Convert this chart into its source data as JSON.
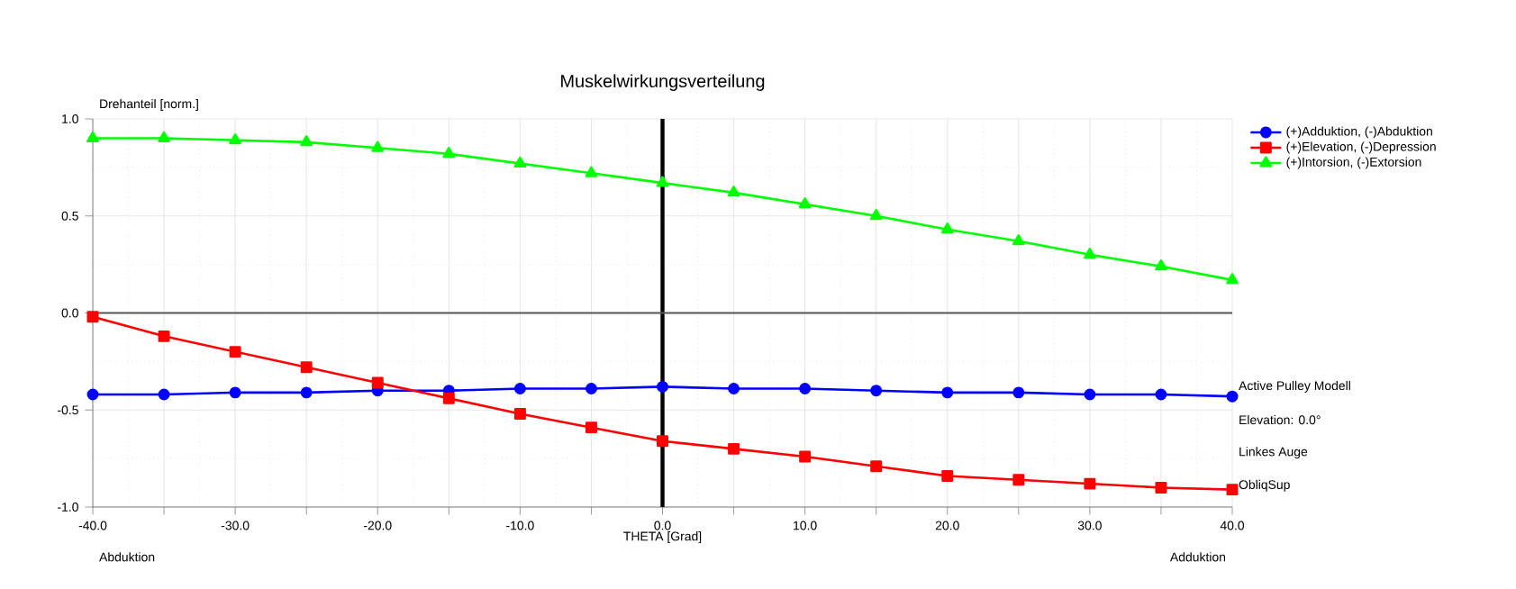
{
  "chart_data": {
    "type": "line",
    "title": "Muskelwirkungsverteilung",
    "xlabel": "THETA [Grad]",
    "ylabel": "Drehanteil [norm.]",
    "x": [
      -40,
      -35,
      -30,
      -25,
      -20,
      -15,
      -10,
      -5,
      0,
      5,
      10,
      15,
      20,
      25,
      30,
      35,
      40
    ],
    "series": [
      {
        "name": "(+)Adduktion, (-)Abduktion",
        "color": "#0000ff",
        "marker": "circle",
        "values": [
          -0.42,
          -0.42,
          -0.41,
          -0.41,
          -0.4,
          -0.4,
          -0.39,
          -0.39,
          -0.38,
          -0.39,
          -0.39,
          -0.4,
          -0.41,
          -0.41,
          -0.42,
          -0.42,
          -0.43
        ]
      },
      {
        "name": "(+)Elevation, (-)Depression",
        "color": "#ff0000",
        "marker": "square",
        "values": [
          -0.02,
          -0.12,
          -0.2,
          -0.28,
          -0.36,
          -0.44,
          -0.52,
          -0.59,
          -0.66,
          -0.7,
          -0.74,
          -0.79,
          -0.84,
          -0.86,
          -0.88,
          -0.9,
          -0.91
        ]
      },
      {
        "name": "(+)Intorsion, (-)Extorsion",
        "color": "#00ff00",
        "marker": "triangle",
        "values": [
          0.9,
          0.9,
          0.89,
          0.88,
          0.85,
          0.82,
          0.77,
          0.72,
          0.67,
          0.62,
          0.56,
          0.5,
          0.43,
          0.37,
          0.3,
          0.24,
          0.17
        ]
      }
    ],
    "xlim": [
      -40,
      40
    ],
    "ylim": [
      -1,
      1
    ],
    "xticks": [
      {
        "value": -40,
        "label": "-40.0"
      },
      {
        "value": -35,
        "label": null
      },
      {
        "value": -30,
        "label": "-30.0"
      },
      {
        "value": -25,
        "label": null
      },
      {
        "value": -20,
        "label": "-20.0"
      },
      {
        "value": -15,
        "label": null
      },
      {
        "value": -10,
        "label": "-10.0"
      },
      {
        "value": -5,
        "label": null
      },
      {
        "value": 0,
        "label": "0.0"
      },
      {
        "value": 5,
        "label": null
      },
      {
        "value": 10,
        "label": "10.0"
      },
      {
        "value": 15,
        "label": null
      },
      {
        "value": 20,
        "label": "20.0"
      },
      {
        "value": 25,
        "label": null
      },
      {
        "value": 30,
        "label": "30.0"
      },
      {
        "value": 35,
        "label": null
      },
      {
        "value": 40,
        "label": "40.0"
      }
    ],
    "yticks": [
      {
        "value": -1,
        "label": "-1.0"
      },
      {
        "value": -0.5,
        "label": "-0.5"
      },
      {
        "value": 0,
        "label": "0.0"
      },
      {
        "value": 0.5,
        "label": "0.5"
      },
      {
        "value": 1,
        "label": "1.0"
      }
    ],
    "grid": true,
    "legend": "top right",
    "ref_lines": [
      {
        "axis": "x",
        "value": 0,
        "color": "#000000"
      },
      {
        "axis": "y",
        "value": 0,
        "color": "#555555"
      }
    ],
    "annotations": [
      "Abduktion",
      "Adduktion",
      "Active Pulley Modell",
      "Elevation: 0.0°",
      "Linkes Auge",
      "ObliqSup"
    ]
  }
}
